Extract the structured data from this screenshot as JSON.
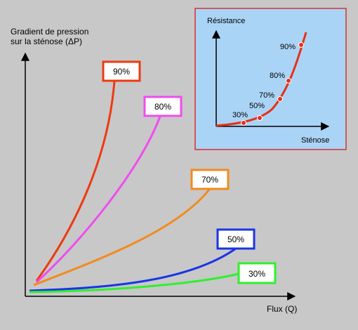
{
  "main_axes": {
    "y_label_line1": "Gradient de pression",
    "y_label_line2": "sur la sténose (ΔP)",
    "x_label": "Flux (Q)"
  },
  "curves": [
    {
      "label": "90%",
      "color": "#ee3a10"
    },
    {
      "label": "80%",
      "color": "#f04cef"
    },
    {
      "label": "70%",
      "color": "#f38a1f"
    },
    {
      "label": "50%",
      "color": "#1a34e6"
    },
    {
      "label": "30%",
      "color": "#2ff02f"
    }
  ],
  "inset": {
    "background": "#aad4f6",
    "border_color": "#d83030",
    "curve_color": "#e82f16",
    "y_label": "Résistance",
    "x_label": "Sténose",
    "point_labels": [
      "30%",
      "50%",
      "70%",
      "80%",
      "90%"
    ]
  }
}
